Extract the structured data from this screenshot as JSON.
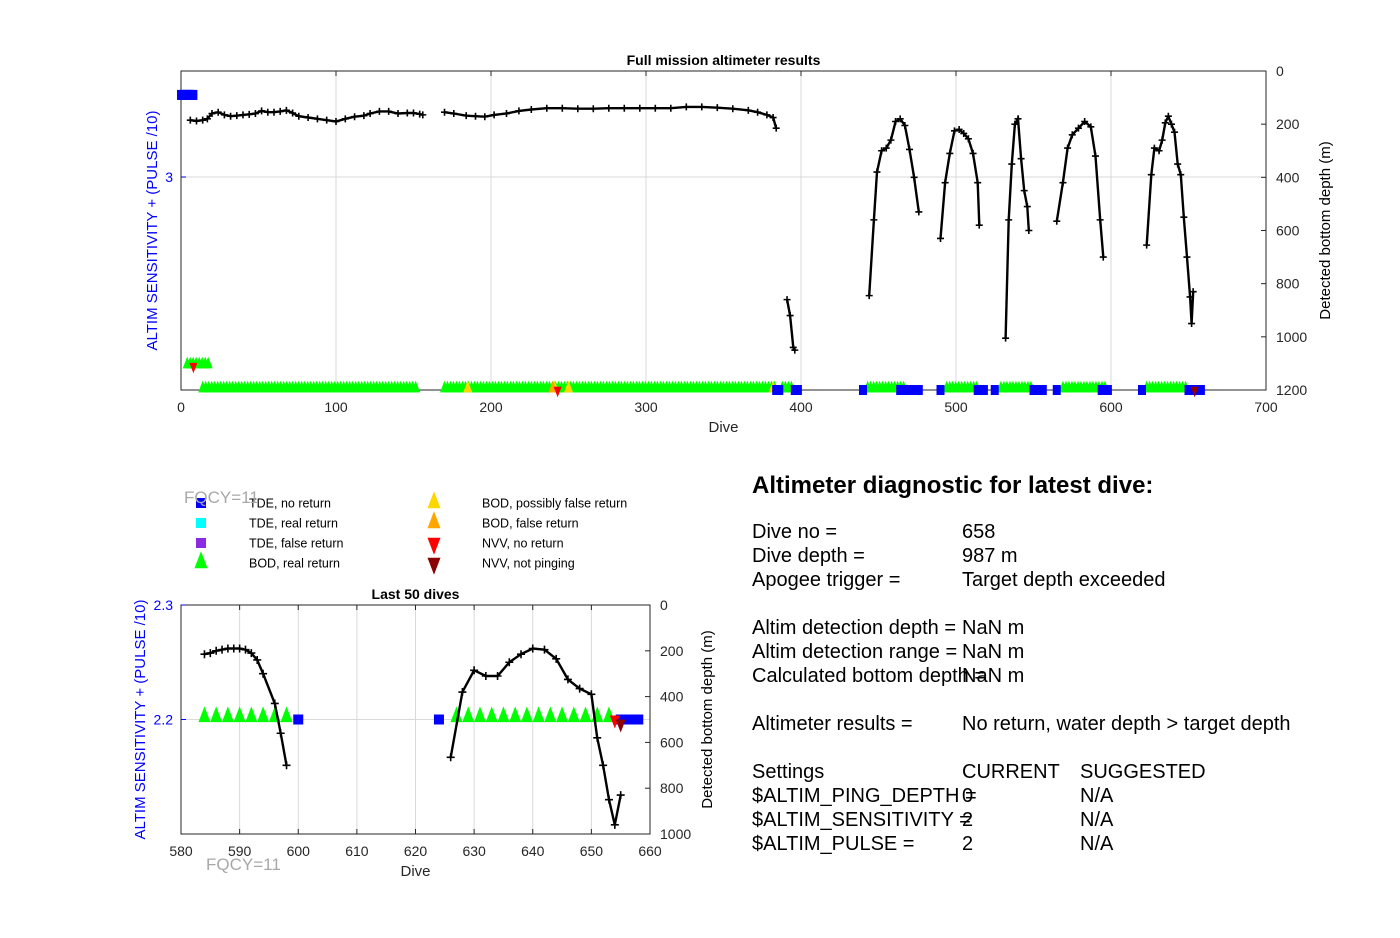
{
  "chart_data": [
    {
      "type": "line",
      "title": "Full mission altimeter results",
      "xlabel": "Dive",
      "ylabel_left": "ALTIM SENSITIVITY + (PULSE /10)",
      "ylabel_right": "Detected bottom depth (m)",
      "xlim": [
        0,
        700
      ],
      "xticks": [
        "0",
        "100",
        "200",
        "300",
        "400",
        "500",
        "600",
        "700"
      ],
      "yticks_left": [
        "3"
      ],
      "yticks_right": [
        "0",
        "200",
        "400",
        "600",
        "800",
        "1000",
        "1200"
      ],
      "right_ylim": [
        0,
        1200
      ],
      "right_reversed": true,
      "grid": true,
      "depth_segments": [
        [
          [
            6,
            185
          ],
          [
            10,
            188
          ],
          [
            14,
            185
          ],
          [
            17,
            180
          ],
          [
            20,
            160
          ],
          [
            24,
            155
          ],
          [
            28,
            165
          ],
          [
            32,
            170
          ],
          [
            36,
            168
          ],
          [
            40,
            165
          ],
          [
            44,
            163
          ],
          [
            48,
            160
          ],
          [
            52,
            150
          ],
          [
            56,
            155
          ],
          [
            60,
            155
          ],
          [
            64,
            152
          ],
          [
            68,
            148
          ],
          [
            72,
            158
          ],
          [
            76,
            170
          ],
          [
            82,
            175
          ],
          [
            88,
            180
          ],
          [
            94,
            185
          ],
          [
            100,
            190
          ],
          [
            106,
            180
          ],
          [
            112,
            172
          ],
          [
            118,
            168
          ],
          [
            122,
            160
          ],
          [
            128,
            152
          ],
          [
            134,
            152
          ],
          [
            140,
            160
          ],
          [
            146,
            158
          ],
          [
            150,
            158
          ],
          [
            154,
            162
          ],
          [
            156,
            165
          ]
        ],
        [
          [
            170,
            155
          ],
          [
            176,
            160
          ],
          [
            184,
            168
          ],
          [
            190,
            170
          ],
          [
            196,
            172
          ],
          [
            202,
            165
          ],
          [
            210,
            160
          ],
          [
            218,
            150
          ],
          [
            226,
            145
          ],
          [
            236,
            140
          ],
          [
            246,
            140
          ],
          [
            256,
            142
          ],
          [
            266,
            142
          ],
          [
            276,
            140
          ],
          [
            286,
            140
          ],
          [
            296,
            140
          ],
          [
            306,
            140
          ],
          [
            316,
            140
          ],
          [
            326,
            135
          ],
          [
            336,
            135
          ],
          [
            346,
            138
          ],
          [
            356,
            142
          ],
          [
            366,
            148
          ],
          [
            372,
            155
          ],
          [
            378,
            165
          ],
          [
            382,
            175
          ],
          [
            384,
            215
          ]
        ],
        [
          [
            391,
            860
          ],
          [
            393,
            920
          ],
          [
            395,
            1040
          ],
          [
            396,
            1050
          ]
        ],
        [
          [
            444,
            845
          ],
          [
            447,
            560
          ],
          [
            449,
            380
          ],
          [
            452,
            300
          ],
          [
            455,
            290
          ],
          [
            458,
            260
          ],
          [
            461,
            190
          ],
          [
            464,
            180
          ],
          [
            467,
            205
          ],
          [
            470,
            295
          ],
          [
            473,
            400
          ],
          [
            476,
            530
          ]
        ],
        [
          [
            490,
            630
          ],
          [
            493,
            420
          ],
          [
            496,
            310
          ],
          [
            499,
            225
          ],
          [
            502,
            220
          ],
          [
            505,
            235
          ],
          [
            508,
            255
          ],
          [
            511,
            310
          ],
          [
            514,
            420
          ],
          [
            515,
            580
          ]
        ],
        [
          [
            532,
            1005
          ],
          [
            534,
            560
          ],
          [
            536,
            350
          ],
          [
            538,
            200
          ],
          [
            540,
            180
          ],
          [
            542,
            330
          ],
          [
            544,
            450
          ],
          [
            546,
            510
          ],
          [
            547,
            600
          ]
        ],
        [
          [
            565,
            565
          ],
          [
            569,
            420
          ],
          [
            572,
            290
          ],
          [
            575,
            240
          ],
          [
            579,
            215
          ],
          [
            583,
            190
          ],
          [
            587,
            210
          ],
          [
            590,
            320
          ],
          [
            593,
            560
          ],
          [
            595,
            700
          ]
        ],
        [
          [
            623,
            655
          ],
          [
            626,
            390
          ],
          [
            628,
            290
          ],
          [
            631,
            300
          ],
          [
            633,
            260
          ],
          [
            635,
            195
          ],
          [
            637,
            170
          ],
          [
            639,
            200
          ],
          [
            641,
            230
          ],
          [
            643,
            350
          ],
          [
            645,
            390
          ],
          [
            647,
            550
          ],
          [
            649,
            700
          ],
          [
            651,
            850
          ],
          [
            652,
            950
          ],
          [
            653,
            830
          ]
        ]
      ],
      "markers": {
        "tde_no_return": [
          [
            0,
            90
          ],
          [
            1,
            90
          ],
          [
            2,
            90
          ],
          [
            3,
            90
          ],
          [
            4,
            90
          ],
          [
            5,
            90
          ],
          [
            6,
            90
          ],
          [
            7,
            90
          ],
          [
            8,
            90
          ],
          [
            384,
            1200
          ],
          [
            386,
            1200
          ],
          [
            396,
            1200
          ],
          [
            398,
            1200
          ],
          [
            440,
            1200
          ],
          [
            464,
            1200
          ],
          [
            467,
            1200
          ],
          [
            470,
            1200
          ],
          [
            473,
            1200
          ],
          [
            476,
            1200
          ],
          [
            490,
            1200
          ],
          [
            514,
            1200
          ],
          [
            516,
            1200
          ],
          [
            518,
            1200
          ],
          [
            525,
            1200
          ],
          [
            550,
            1200
          ],
          [
            552,
            1200
          ],
          [
            554,
            1200
          ],
          [
            556,
            1200
          ],
          [
            565,
            1200
          ],
          [
            594,
            1200
          ],
          [
            596,
            1200
          ],
          [
            598,
            1200
          ],
          [
            620,
            1200
          ],
          [
            650,
            1200
          ],
          [
            652,
            1200
          ],
          [
            654,
            1200
          ],
          [
            656,
            1200
          ],
          [
            658,
            1200
          ]
        ],
        "bod_real_return_rows": [
          {
            "x0": 4,
            "x1": 18,
            "y": 1105
          },
          {
            "x0": 14,
            "x1": 153,
            "y": 1195
          },
          {
            "x0": 170,
            "x1": 383,
            "y": 1195
          },
          {
            "x0": 388,
            "x1": 394,
            "y": 1195
          },
          {
            "x0": 443,
            "x1": 467,
            "y": 1195
          },
          {
            "x0": 494,
            "x1": 514,
            "y": 1195
          },
          {
            "x0": 529,
            "x1": 549,
            "y": 1195
          },
          {
            "x0": 569,
            "x1": 597,
            "y": 1195
          },
          {
            "x0": 623,
            "x1": 650,
            "y": 1195
          }
        ],
        "bod_possibly_false": [
          [
            185,
            1195
          ],
          [
            241,
            1195
          ],
          [
            250,
            1195
          ],
          [
            382,
            1195
          ]
        ],
        "bod_false": [
          [
            240,
            1195
          ]
        ],
        "nvv_no_return": [
          [
            8,
            1110
          ],
          [
            243,
            1200
          ]
        ],
        "nvv_not_pinging": [
          [
            654,
            1200
          ]
        ]
      }
    },
    {
      "type": "line",
      "title": "Last 50 dives",
      "xlabel": "Dive",
      "ylabel_left": "ALTIM SENSITIVITY + (PULSE /10)",
      "ylabel_right": "Detected bottom depth (m)",
      "xlim": [
        580,
        660
      ],
      "xticks": [
        "580",
        "590",
        "600",
        "610",
        "620",
        "630",
        "640",
        "650",
        "660"
      ],
      "ylim_left": [
        2.1,
        2.3
      ],
      "yticks_left": [
        "2.3",
        "2.2"
      ],
      "yticks_right": [
        "0",
        "200",
        "400",
        "600",
        "800",
        "1000"
      ],
      "right_ylim": [
        0,
        1000
      ],
      "right_reversed": true,
      "grid": true,
      "depth_segments": [
        [
          [
            584,
            215
          ],
          [
            585,
            210
          ],
          [
            586,
            200
          ],
          [
            587,
            195
          ],
          [
            588,
            190
          ],
          [
            589,
            190
          ],
          [
            590,
            190
          ],
          [
            591,
            195
          ],
          [
            592,
            210
          ],
          [
            593,
            240
          ],
          [
            594,
            300
          ],
          [
            596,
            430
          ],
          [
            597,
            560
          ],
          [
            598,
            700
          ]
        ],
        [
          [
            626,
            665
          ],
          [
            628,
            380
          ],
          [
            630,
            285
          ],
          [
            632,
            310
          ],
          [
            634,
            310
          ],
          [
            636,
            250
          ],
          [
            638,
            215
          ],
          [
            640,
            190
          ],
          [
            642,
            195
          ],
          [
            644,
            235
          ],
          [
            646,
            325
          ],
          [
            648,
            365
          ],
          [
            650,
            390
          ],
          [
            651,
            580
          ],
          [
            652,
            700
          ],
          [
            653,
            850
          ],
          [
            654,
            960
          ],
          [
            655,
            830
          ]
        ]
      ],
      "markers": {
        "tde_no_return": [
          [
            600,
            500
          ],
          [
            624,
            500
          ],
          [
            655,
            500
          ],
          [
            656,
            500
          ],
          [
            657,
            500
          ],
          [
            658,
            500
          ]
        ],
        "bod_real_return": [
          [
            584,
            490
          ],
          [
            586,
            490
          ],
          [
            588,
            490
          ],
          [
            590,
            490
          ],
          [
            592,
            490
          ],
          [
            594,
            490
          ],
          [
            596,
            490
          ],
          [
            598,
            490
          ],
          [
            627,
            490
          ],
          [
            629,
            490
          ],
          [
            631,
            490
          ],
          [
            633,
            490
          ],
          [
            635,
            490
          ],
          [
            637,
            490
          ],
          [
            639,
            490
          ],
          [
            641,
            490
          ],
          [
            643,
            490
          ],
          [
            645,
            490
          ],
          [
            647,
            490
          ],
          [
            649,
            490
          ],
          [
            651,
            490
          ],
          [
            653,
            490
          ]
        ],
        "nvv_no_return": [
          [
            654,
            500
          ]
        ],
        "nvv_not_pinging": [
          [
            655,
            500
          ]
        ]
      }
    }
  ],
  "legend": [
    {
      "label": "TDE, no return",
      "symbol": "square",
      "color": "#0000ff"
    },
    {
      "label": "TDE, real return",
      "symbol": "square",
      "color": "#00ffff"
    },
    {
      "label": "TDE, false return",
      "symbol": "square",
      "color": "#8a2be2"
    },
    {
      "label": "BOD, real return",
      "symbol": "triangle-up",
      "color": "#00ff00"
    },
    {
      "label": "BOD, possibly false return",
      "symbol": "triangle-up",
      "color": "#ffd700"
    },
    {
      "label": "BOD, false return",
      "symbol": "triangle-up",
      "color": "#ffa500"
    },
    {
      "label": "NVV, no return",
      "symbol": "triangle-down",
      "color": "#ff0000"
    },
    {
      "label": "NVV, not pinging",
      "symbol": "triangle-down",
      "color": "#8b0000"
    }
  ],
  "fqcy_label": "FQCY=11",
  "colors": {
    "left_axis": "#0000ff",
    "grid": "#d9d9d9",
    "depth_line": "#000000",
    "fqcy": "#a8a8a8"
  },
  "diagnostic": {
    "title": "Altimeter diagnostic for latest dive:",
    "rows": [
      {
        "label": "Dive no =",
        "value": "658",
        "suggested": ""
      },
      {
        "label": "Dive depth =",
        "value": "987 m",
        "suggested": ""
      },
      {
        "label": "Apogee trigger =",
        "value": "Target depth exceeded",
        "suggested": ""
      },
      {
        "label": "Altim detection depth =",
        "value": "NaN m",
        "suggested": ""
      },
      {
        "label": "Altim detection range =",
        "value": "NaN m",
        "suggested": ""
      },
      {
        "label": "Calculated bottom depth =",
        "value": "NaN m",
        "suggested": ""
      },
      {
        "label": "Altimeter results =",
        "value": "No return, water depth > target depth",
        "suggested": ""
      },
      {
        "label": "Settings",
        "value": "CURRENT",
        "suggested": "SUGGESTED"
      },
      {
        "label": "$ALTIM_PING_DEPTH =",
        "value": "0",
        "suggested": "N/A"
      },
      {
        "label": "$ALTIM_SENSITIVITY =",
        "value": "2",
        "suggested": "N/A"
      },
      {
        "label": "$ALTIM_PULSE =",
        "value": "2",
        "suggested": "N/A"
      }
    ]
  }
}
